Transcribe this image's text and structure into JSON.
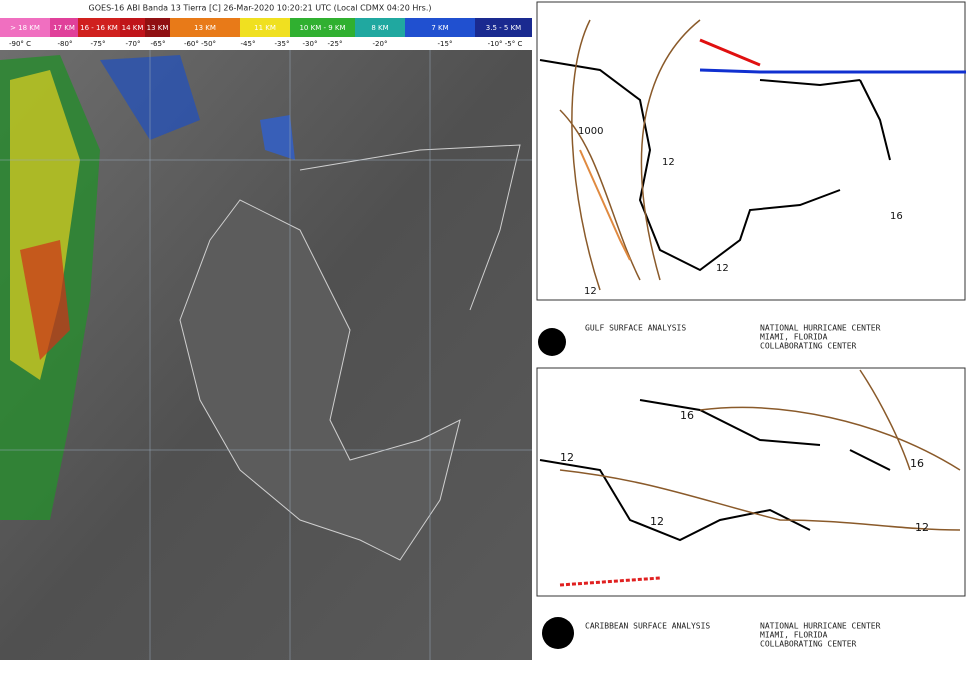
{
  "satellite": {
    "header": "GOES-16 ABI Banda 13 Tierra [C] 26-Mar-2020 10:20:21 UTC (Local CDMX 04:20 Hrs.)",
    "bands": [
      {
        "label": "> 18 KM",
        "color": "#f06fc0"
      },
      {
        "label": "17 KM",
        "color": "#e0409a"
      },
      {
        "label": "16 - 16 KM",
        "color": "#d0201e"
      },
      {
        "label": "14 KM",
        "color": "#c0141a"
      },
      {
        "label": "13 KM",
        "color": "#901012"
      },
      {
        "label": "13 KM",
        "color": "#e87a18"
      },
      {
        "label": "11 KM",
        "color": "#f0e020"
      },
      {
        "label": "10 KM - 9 KM",
        "color": "#30b030"
      },
      {
        "label": "8 KM",
        "color": "#20a8a0"
      },
      {
        "label": "7 KM",
        "color": "#2050d0"
      },
      {
        "label": "3.5 - 5 KM",
        "color": "#1a2a90"
      }
    ],
    "temperatures": [
      "-90° C",
      "-80°",
      "-75°",
      "-70°",
      "-65°",
      "-60° -50°",
      "-45°",
      "-35°",
      "-30°",
      "-25°",
      "-20°",
      "-15°",
      "-10° -5° C"
    ]
  },
  "gulf_map": {
    "isobars": [
      "1000",
      "12",
      "12",
      "12",
      "16"
    ],
    "caption": [
      "GULF SURFACE ANALYSIS",
      "NATIONAL HURRICANE CENTER",
      "MIAMI, FLORIDA",
      "COLLABORATING CENTER"
    ]
  },
  "caribbean_map": {
    "isobars": [
      "12",
      "12",
      "16",
      "16",
      "12"
    ],
    "caption": [
      "CARIBBEAN SURFACE ANALYSIS",
      "NATIONAL HURRICANE CENTER",
      "MIAMI, FLORIDA",
      "COLLABORATING CENTER"
    ]
  }
}
